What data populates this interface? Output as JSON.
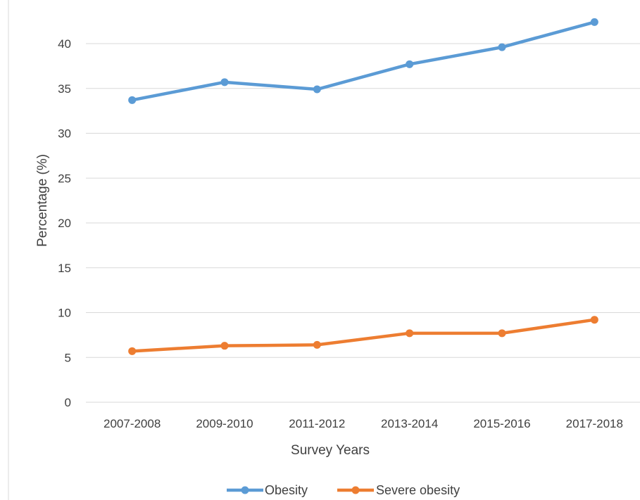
{
  "chart_data": {
    "type": "line",
    "title": "",
    "xlabel": "Survey Years",
    "ylabel": "Percentage (%)",
    "categories": [
      "2007-2008",
      "2009-2010",
      "2011-2012",
      "2013-2014",
      "2015-2016",
      "2017-2018"
    ],
    "ylim": [
      0,
      45
    ],
    "yticks": [
      0,
      5,
      10,
      15,
      20,
      25,
      30,
      35,
      40
    ],
    "grid": true,
    "legend_position": "bottom",
    "series": [
      {
        "name": "Obesity",
        "color": "#5B9BD5",
        "values": [
          33.7,
          35.7,
          34.9,
          37.7,
          39.6,
          42.4
        ]
      },
      {
        "name": "Severe obesity",
        "color": "#ED7D31",
        "values": [
          5.7,
          6.3,
          6.4,
          7.7,
          7.7,
          9.2
        ]
      }
    ]
  }
}
